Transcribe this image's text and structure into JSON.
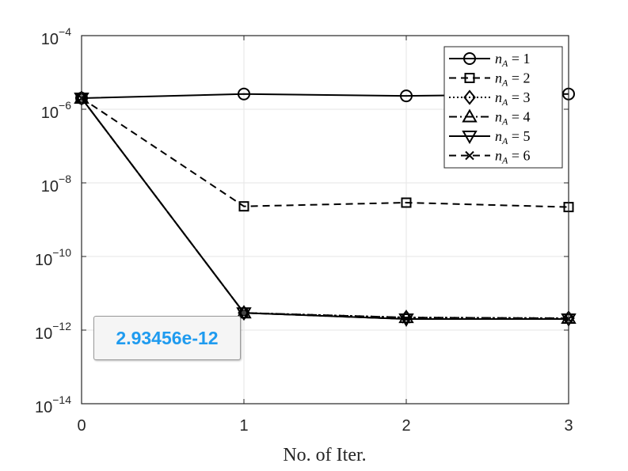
{
  "chart_data": {
    "type": "line",
    "xlabel": "No. of Iter.",
    "ylabel": "",
    "title": "",
    "x": [
      0,
      1,
      2,
      3
    ],
    "xlim": [
      0,
      3
    ],
    "ylim_exponent": [
      -14,
      -4
    ],
    "yscale": "log",
    "x_ticks": [
      "0",
      "1",
      "2",
      "3"
    ],
    "y_ticks": [
      {
        "base": "10",
        "exp": "−4",
        "value_exp": -4
      },
      {
        "base": "10",
        "exp": "−6",
        "value_exp": -6
      },
      {
        "base": "10",
        "exp": "−8",
        "value_exp": -8
      },
      {
        "base": "10",
        "exp": "−10",
        "value_exp": -10
      },
      {
        "base": "10",
        "exp": "−12",
        "value_exp": -12
      },
      {
        "base": "10",
        "exp": "−14",
        "value_exp": -14
      }
    ],
    "grid": true,
    "legend_position": "top-right",
    "series": [
      {
        "name": "n_A = 1",
        "label_var": "n",
        "label_sub": "A",
        "label_rest": " = 1",
        "marker": "circle",
        "dash": "solid",
        "values": [
          2e-06,
          2.6e-06,
          2.3e-06,
          2.6e-06
        ]
      },
      {
        "name": "n_A = 2",
        "label_var": "n",
        "label_sub": "A",
        "label_rest": " = 2",
        "marker": "square",
        "dash": "dashed",
        "values": [
          2e-06,
          2.3e-09,
          2.9e-09,
          2.2e-09
        ]
      },
      {
        "name": "n_A = 3",
        "label_var": "n",
        "label_sub": "A",
        "label_rest": " = 3",
        "marker": "diamond",
        "dash": "dotted",
        "values": [
          2e-06,
          2.93456e-12,
          2.2e-12,
          2.1e-12
        ]
      },
      {
        "name": "n_A = 4",
        "label_var": "n",
        "label_sub": "A",
        "label_rest": " = 4",
        "marker": "triangle-up",
        "dash": "dashdot",
        "values": [
          2e-06,
          2.93456e-12,
          2.2e-12,
          2.1e-12
        ]
      },
      {
        "name": "n_A = 5",
        "label_var": "n",
        "label_sub": "A",
        "label_rest": " = 5",
        "marker": "triangle-down",
        "dash": "solid",
        "values": [
          2e-06,
          2.93456e-12,
          2e-12,
          2e-12
        ]
      },
      {
        "name": "n_A = 6",
        "label_var": "n",
        "label_sub": "A",
        "label_rest": " = 6",
        "marker": "x",
        "dash": "dashed",
        "values": [
          2e-06,
          2.93456e-12,
          2e-12,
          2e-12
        ]
      }
    ],
    "datatip": {
      "text": "2.93456e-12",
      "x": 1,
      "y": 2.93456e-12
    }
  }
}
